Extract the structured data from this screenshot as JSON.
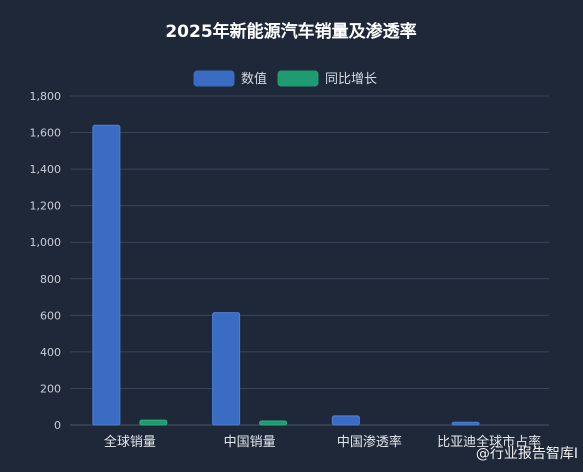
{
  "chart_data": {
    "type": "bar",
    "title": "2025年新能源汽车销量及渗透率",
    "categories": [
      "全球销量",
      "中国销量",
      "中国渗透率",
      "比亚迪全球市占率"
    ],
    "series": [
      {
        "name": "数值",
        "values": [
          1640,
          615,
          50,
          15
        ],
        "color": "#3a6cc4"
      },
      {
        "name": "同比增长",
        "values": [
          27,
          22,
          0,
          0
        ],
        "color": "#1f9b72"
      }
    ],
    "ylim": [
      0,
      1800
    ],
    "yticks": [
      "0",
      "200",
      "400",
      "600",
      "800",
      "1,000",
      "1,200",
      "1,400",
      "1,600",
      "1,800"
    ],
    "grid": true,
    "legend": "top-center",
    "xlabel": "",
    "ylabel": ""
  },
  "watermark": "@行业报告智库I"
}
